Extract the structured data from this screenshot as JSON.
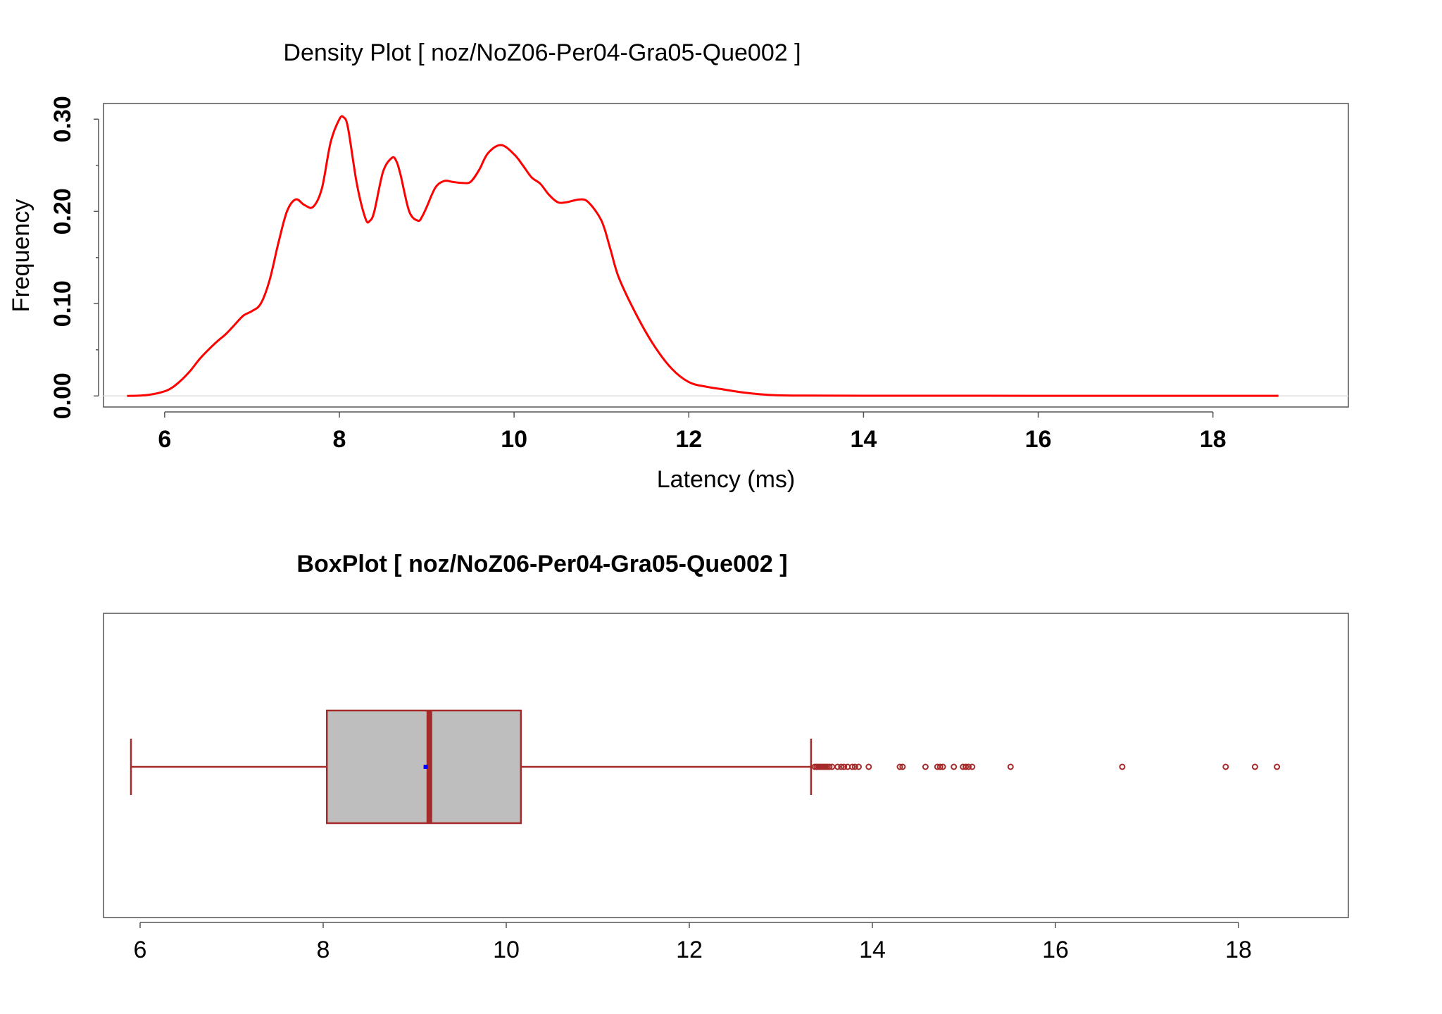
{
  "chart_data": [
    {
      "type": "line",
      "title": "Density Plot [ noz/NoZ06-Per04-Gra05-Que002 ]",
      "xlabel": "Latency (ms)",
      "ylabel": "Frequency",
      "xlim": [
        5.3,
        19.55
      ],
      "ylim": [
        -0.012,
        0.317
      ],
      "xticks": [
        "6",
        "8",
        "10",
        "12",
        "14",
        "16",
        "18"
      ],
      "yticks": [
        "0.00",
        "0.10",
        "0.20",
        "0.30"
      ],
      "yminor": [
        0.05,
        0.15,
        0.25
      ],
      "grid": false,
      "line_color": "#ff0000",
      "series": [
        {
          "x": [
            5.57,
            5.8,
            6.0,
            6.1,
            6.2,
            6.3,
            6.4,
            6.5,
            6.6,
            6.7,
            6.8,
            6.9,
            7.0,
            7.1,
            7.2,
            7.3,
            7.4,
            7.5,
            7.6,
            7.7,
            7.8,
            7.9,
            8.0,
            8.05,
            8.1,
            8.2,
            8.3,
            8.35,
            8.4,
            8.5,
            8.6,
            8.65,
            8.7,
            8.8,
            8.9,
            8.95,
            9.0,
            9.1,
            9.2,
            9.3,
            9.4,
            9.5,
            9.6,
            9.7,
            9.85,
            10.0,
            10.1,
            10.2,
            10.3,
            10.4,
            10.5,
            10.6,
            10.75,
            10.85,
            11.0,
            11.1,
            11.2,
            11.4,
            11.6,
            11.8,
            12.0,
            12.2,
            12.4,
            12.6,
            12.8,
            13.0,
            13.3,
            14.0,
            15.0,
            16.0,
            17.0,
            18.0,
            18.75
          ],
          "y": [
            0.0,
            0.001,
            0.005,
            0.01,
            0.018,
            0.028,
            0.04,
            0.05,
            0.059,
            0.067,
            0.077,
            0.087,
            0.092,
            0.1,
            0.125,
            0.165,
            0.2,
            0.213,
            0.207,
            0.205,
            0.225,
            0.275,
            0.3,
            0.302,
            0.29,
            0.23,
            0.192,
            0.19,
            0.2,
            0.243,
            0.258,
            0.255,
            0.24,
            0.2,
            0.19,
            0.195,
            0.205,
            0.226,
            0.233,
            0.232,
            0.231,
            0.232,
            0.245,
            0.263,
            0.272,
            0.262,
            0.25,
            0.237,
            0.23,
            0.218,
            0.21,
            0.21,
            0.213,
            0.21,
            0.19,
            0.16,
            0.128,
            0.088,
            0.055,
            0.03,
            0.015,
            0.01,
            0.007,
            0.004,
            0.002,
            0.0008,
            0.0004,
            0.0002,
            0.0002,
            0.0001,
            0.0001,
            0.0001,
            0.0001
          ]
        }
      ]
    },
    {
      "type": "box",
      "title": "BoxPlot [ noz/NoZ06-Per04-Gra05-Que002 ]",
      "xlim": [
        5.6,
        19.2
      ],
      "xticks": [
        "6",
        "8",
        "10",
        "12",
        "14",
        "16",
        "18"
      ],
      "grid": false,
      "box_fill": "#bebebe",
      "border_color": "#a52a2a",
      "mean_color": "#0000ff",
      "whisker_low": 5.9,
      "q1": 8.04,
      "median": 9.16,
      "q3": 10.16,
      "whisker_high": 13.33,
      "mean": 9.12,
      "outliers": [
        13.37,
        13.39,
        13.41,
        13.43,
        13.45,
        13.47,
        13.49,
        13.51,
        13.53,
        13.56,
        13.62,
        13.66,
        13.69,
        13.73,
        13.78,
        13.81,
        13.85,
        13.96,
        14.3,
        14.33,
        14.58,
        14.71,
        14.74,
        14.77,
        14.89,
        14.99,
        15.02,
        15.05,
        15.09,
        15.51,
        16.73,
        17.86,
        18.18,
        18.42
      ]
    }
  ]
}
